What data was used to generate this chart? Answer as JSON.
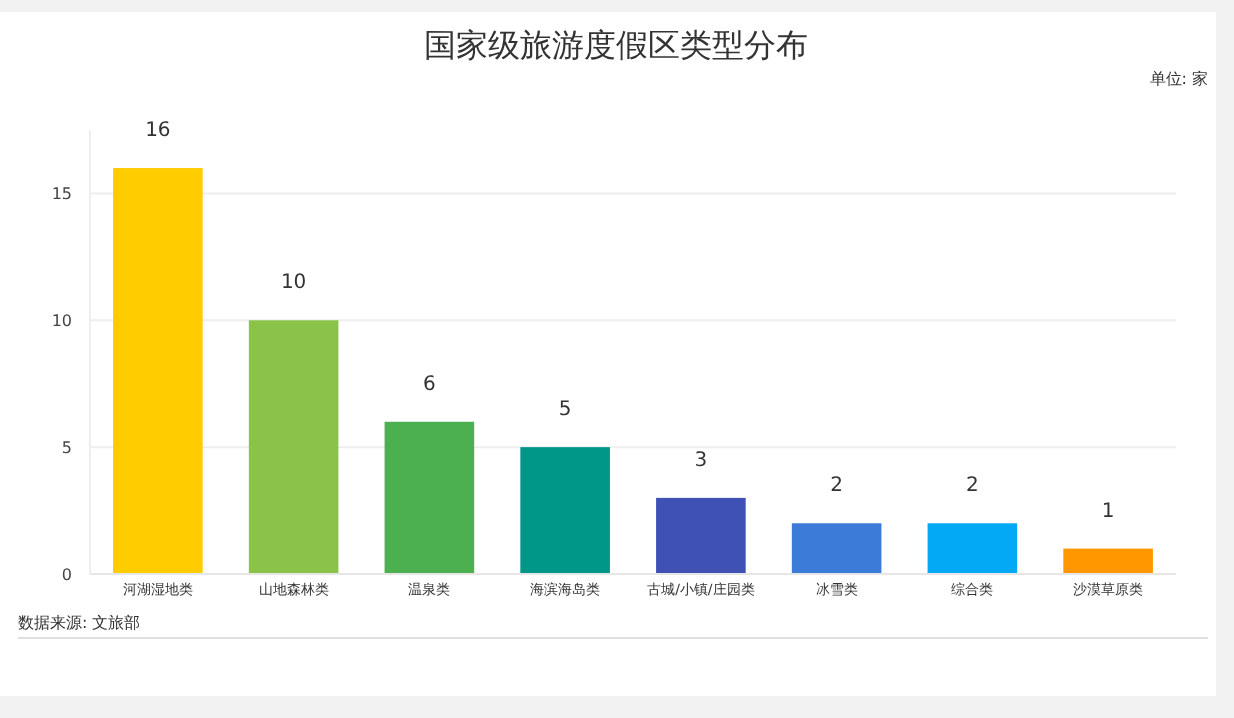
{
  "chart_data": {
    "type": "bar",
    "title": "国家级旅游度假区类型分布",
    "categories": [
      "河湖湿地类",
      "山地森林类",
      "温泉类",
      "海滨海岛类",
      "古城/小镇/庄园类",
      "冰雪类",
      "综合类",
      "沙漠草原类"
    ],
    "values": [
      16,
      10,
      6,
      5,
      3,
      2,
      2,
      1
    ],
    "colors": [
      "#ffcc00",
      "#8bc34a",
      "#4caf50",
      "#009688",
      "#3f51b5",
      "#3d7bd9",
      "#03a9f4",
      "#ff9800"
    ],
    "ylim": [
      0,
      17.5
    ],
    "yticks": [
      0,
      5,
      10,
      15
    ],
    "grid": "y",
    "data_labels": true,
    "annotations": [
      "单位: 家",
      "数据来源: 文旅部"
    ]
  }
}
